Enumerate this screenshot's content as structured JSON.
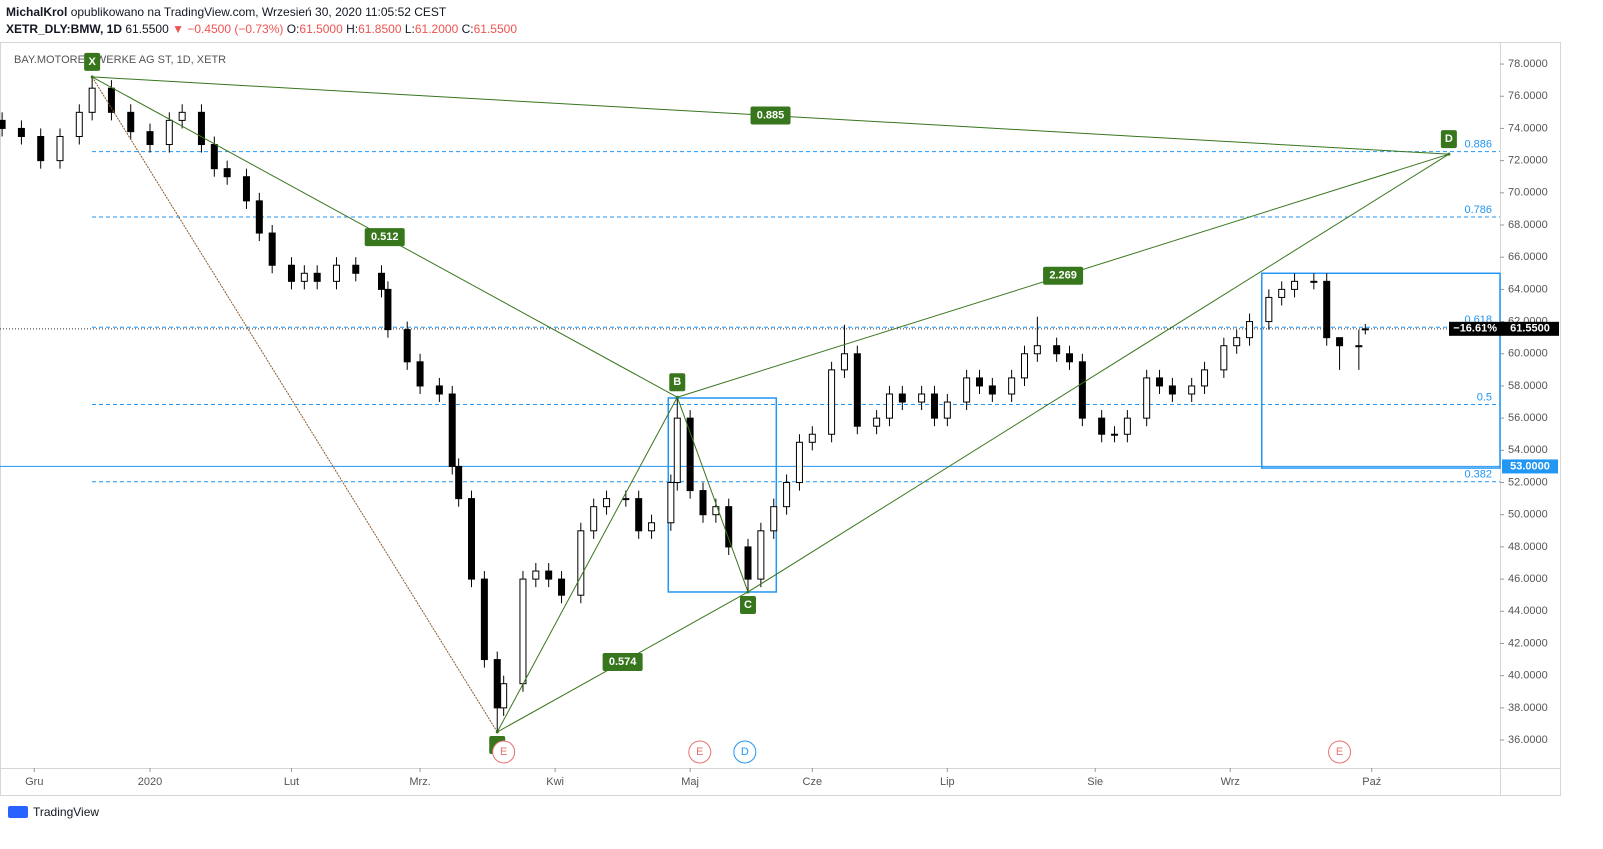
{
  "header": {
    "author": "MichalKrol",
    "published": "opublikowano na TradingView.com, Wrzesień 30, 2020 11:05:52 CEST",
    "symbol": "XETR_DLY:BMW, 1D",
    "last": "61.5500",
    "change": "▼ −0.4500 (−0.73%)",
    "ohlc": [
      {
        "key": "O:",
        "value": "61.5000"
      },
      {
        "key": "H:",
        "value": "61.8500"
      },
      {
        "key": "L:",
        "value": "61.2000"
      },
      {
        "key": "C:",
        "value": "61.5500"
      }
    ]
  },
  "footer": {
    "brand": "TradingView"
  },
  "chart_data": {
    "type": "candlestick",
    "legend": "BAY.MOTOREN WERKE AG ST, 1D, XETR",
    "xlim": [
      -23.33,
      209.95
    ],
    "ylim": [
      34.45,
      79.37
    ],
    "xticks": [
      {
        "value": -18,
        "label": "Gru"
      },
      {
        "value": 0,
        "label": "2020"
      },
      {
        "value": 22,
        "label": "Lut"
      },
      {
        "value": 42,
        "label": "Mrz."
      },
      {
        "value": 63,
        "label": "Kwi"
      },
      {
        "value": 84,
        "label": "Maj"
      },
      {
        "value": 103,
        "label": "Cze"
      },
      {
        "value": 124,
        "label": "Lip"
      },
      {
        "value": 147,
        "label": "Sie"
      },
      {
        "value": 168,
        "label": "Wrz"
      },
      {
        "value": 190,
        "label": "Paź"
      }
    ],
    "yticks": [
      {
        "value": 36,
        "label": "36.0000"
      },
      {
        "value": 38,
        "label": "38.0000"
      },
      {
        "value": 40,
        "label": "40.0000"
      },
      {
        "value": 42,
        "label": "42.0000"
      },
      {
        "value": 44,
        "label": "44.0000"
      },
      {
        "value": 46,
        "label": "46.0000"
      },
      {
        "value": 48,
        "label": "48.0000"
      },
      {
        "value": 50,
        "label": "50.0000"
      },
      {
        "value": 52,
        "label": "52.0000"
      },
      {
        "value": 54,
        "label": "54.0000"
      },
      {
        "value": 56,
        "label": "56.0000"
      },
      {
        "value": 58,
        "label": "58.0000"
      },
      {
        "value": 60,
        "label": "60.0000"
      },
      {
        "value": 62,
        "label": "62.0000"
      },
      {
        "value": 64,
        "label": "64.0000"
      },
      {
        "value": 66,
        "label": "66.0000"
      },
      {
        "value": 68,
        "label": "68.0000"
      },
      {
        "value": 70,
        "label": "70.0000"
      },
      {
        "value": 72,
        "label": "72.0000"
      },
      {
        "value": 74,
        "label": "74.0000"
      },
      {
        "value": 76,
        "label": "76.0000"
      },
      {
        "value": 78,
        "label": "78.0000"
      }
    ],
    "x": [
      -23,
      -20,
      -17,
      -14,
      -11,
      -9,
      -6,
      -3,
      0,
      3,
      5,
      8,
      10,
      12,
      15,
      17,
      19,
      22,
      24,
      26,
      29,
      32,
      36,
      37,
      40,
      42,
      45,
      47,
      48,
      50,
      52,
      54,
      55,
      58,
      60,
      62,
      64,
      67,
      69,
      71,
      74,
      76,
      78,
      81,
      82,
      84,
      86,
      88,
      90,
      93,
      95,
      97,
      99,
      101,
      103,
      106,
      108,
      110,
      113,
      115,
      117,
      120,
      122,
      124,
      127,
      129,
      131,
      134,
      136,
      138,
      141,
      143,
      145,
      148,
      150,
      152,
      155,
      157,
      159,
      162,
      164,
      167,
      169,
      171,
      174,
      176,
      178,
      181,
      183,
      185,
      188,
      189
    ],
    "open": [
      74.5,
      74,
      73.5,
      72,
      73.5,
      75,
      76.5,
      75,
      73.8,
      73,
      74.5,
      75,
      73,
      71.5,
      71,
      69.5,
      67.5,
      65.5,
      64.5,
      65,
      64.5,
      65.5,
      65,
      64,
      61.5,
      59.5,
      58,
      57.5,
      53,
      51,
      46,
      41,
      38,
      39.5,
      46,
      46.5,
      46,
      45,
      49,
      50.5,
      51,
      51,
      49,
      49.5,
      52,
      56,
      51.5,
      50,
      50.5,
      48,
      46,
      49,
      50.5,
      52,
      54.5,
      55,
      59,
      60,
      55.5,
      56,
      57.5,
      57,
      57.5,
      56,
      57,
      58.5,
      58,
      57.5,
      58.5,
      60,
      60.5,
      60,
      59.5,
      56,
      55,
      55,
      56,
      58.5,
      58,
      57.5,
      58,
      59,
      60.5,
      61,
      62,
      63.5,
      64,
      64.5,
      64.5,
      61,
      60.5,
      61.5
    ],
    "high": [
      75,
      74.5,
      74,
      74,
      75.5,
      77.2,
      77,
      75.5,
      74.3,
      75,
      75.5,
      75.5,
      73.5,
      72,
      71.5,
      70,
      68,
      66,
      65.5,
      65.5,
      66,
      66,
      65.5,
      64.5,
      62,
      60,
      58.5,
      58,
      53.5,
      51.5,
      46.5,
      41.5,
      40,
      46.5,
      47,
      47,
      46.5,
      49.5,
      51,
      51.5,
      51.5,
      51.5,
      50,
      52.5,
      57.3,
      56.5,
      52,
      51,
      51,
      48.5,
      49.5,
      51,
      52.5,
      55,
      55.5,
      59.5,
      61.8,
      60.5,
      56.5,
      58,
      58,
      58,
      58,
      57.5,
      59,
      59,
      58.5,
      59,
      60.5,
      62.3,
      61,
      60.5,
      60,
      56.5,
      55.5,
      56.5,
      59,
      59,
      58.5,
      58.5,
      59.5,
      61,
      61.5,
      62.5,
      64,
      64.5,
      65,
      65,
      65,
      61,
      61.5,
      61.85
    ],
    "low": [
      73.5,
      73,
      71.5,
      71.5,
      73,
      74.5,
      74.5,
      73.3,
      72.5,
      72.5,
      74,
      72.5,
      71,
      70.5,
      69,
      67,
      65,
      64,
      64,
      64,
      64,
      64.5,
      63.5,
      61,
      59,
      57.5,
      57,
      52.5,
      50.5,
      45.5,
      40.5,
      36.5,
      37.5,
      39,
      45.5,
      45.5,
      44.5,
      44.5,
      48.5,
      50,
      50.5,
      48.5,
      48.5,
      49,
      51.5,
      51,
      49.5,
      49.5,
      47.5,
      45.2,
      45.5,
      48.5,
      50,
      51.5,
      54,
      54.5,
      58.5,
      55,
      55,
      55.5,
      56.5,
      56.5,
      55.5,
      55.5,
      56.5,
      57.5,
      57,
      57,
      58,
      59.5,
      59.5,
      59,
      55.5,
      54.5,
      54.5,
      54.5,
      55.5,
      57.5,
      57,
      57,
      57.5,
      58.5,
      60,
      60.5,
      61.5,
      63,
      63.5,
      64,
      60.5,
      59,
      59,
      61.2
    ],
    "close": [
      74,
      73.5,
      72,
      73.5,
      75,
      76.5,
      75,
      73.8,
      73,
      74.5,
      75,
      73,
      71.5,
      71,
      69.5,
      67.5,
      65.5,
      64.5,
      65,
      64.5,
      65.5,
      65,
      64,
      61.5,
      59.5,
      58,
      57.5,
      53,
      51,
      46,
      41,
      38,
      39.5,
      46,
      46.5,
      46,
      45,
      49,
      50.5,
      51,
      51,
      49,
      49.5,
      52,
      56,
      51.5,
      50,
      50.5,
      48,
      46,
      49,
      50.5,
      52,
      54.5,
      55,
      59,
      60,
      55.5,
      56,
      57.5,
      57,
      57.5,
      56,
      57,
      58.5,
      58,
      57.5,
      58.5,
      60,
      60.5,
      60,
      59.5,
      56,
      55,
      55,
      56,
      58.5,
      58,
      57.5,
      58,
      59,
      60.5,
      61,
      62,
      63.5,
      64,
      64.5,
      64.5,
      61,
      60.5,
      60.5,
      61.55
    ],
    "pattern": {
      "color": "#38761d",
      "points": [
        {
          "label": "X",
          "x": -9,
          "y": 77.2
        },
        {
          "x": 54,
          "y": 36.5
        },
        {
          "label": "B",
          "x": 82,
          "y": 57.3
        },
        {
          "label": "C",
          "x": 93,
          "y": 45.2
        },
        {
          "label": "D",
          "x": 202,
          "y": 72.4
        }
      ],
      "ratios": [
        0.885,
        0.512,
        2.269,
        0.574
      ]
    },
    "fib_levels": [
      {
        "ratio": 0.886,
        "price": 72.56
      },
      {
        "ratio": 0.786,
        "price": 68.5
      },
      {
        "ratio": 0.618,
        "price": 61.65
      },
      {
        "ratio": 0.5,
        "price": 56.85
      },
      {
        "ratio": 0.382,
        "price": 52.05
      }
    ],
    "boxes": [
      {
        "x": [
          80.6,
          97.4
        ],
        "y": [
          45.2,
          57.25
        ]
      },
      {
        "x": [
          172.9,
          209.95
        ],
        "y": [
          52.9,
          65.0
        ]
      }
    ],
    "hline": {
      "value": 53.0,
      "label": "53.0000",
      "color": "#2196f3"
    },
    "last_price": {
      "value": 61.55,
      "label": "61.5500",
      "change": "−16.61%"
    },
    "events": [
      {
        "label": "E",
        "x": 55,
        "color": "#e57373"
      },
      {
        "label": "E",
        "x": 85.5,
        "color": "#e57373"
      },
      {
        "label": "D",
        "x": 92.5,
        "color": "#2196f3"
      },
      {
        "label": "E",
        "x": 185,
        "color": "#e57373"
      }
    ]
  }
}
